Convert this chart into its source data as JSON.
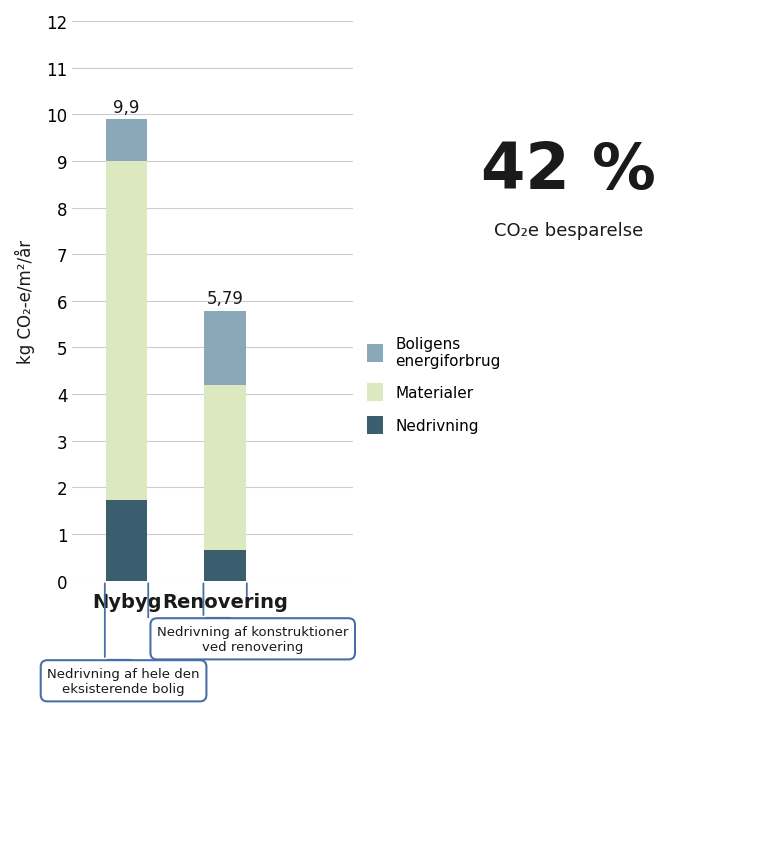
{
  "categories": [
    "Nybyg",
    "Renovering"
  ],
  "nedrivning": [
    1.72,
    0.65
  ],
  "materialer": [
    7.28,
    3.55
  ],
  "energi": [
    0.9,
    1.59
  ],
  "totals": [
    9.9,
    5.79
  ],
  "color_nedrivning": "#3b5e6e",
  "color_materialer": "#dce9c0",
  "color_energi": "#8aa8b8",
  "ylabel": "kg CO₂-e/m²/år",
  "ylim": [
    0,
    12
  ],
  "yticks": [
    0,
    1,
    2,
    3,
    4,
    5,
    6,
    7,
    8,
    9,
    10,
    11,
    12
  ],
  "big_text": "42 %",
  "sub_text": "CO₂e besparelse",
  "legend_labels": [
    "Boligens\nenergiforbrug",
    "Materialer",
    "Nedrivning"
  ],
  "annotation_nybyg": "Nedrivning af hele den\neksisterende bolig",
  "annotation_renovering": "Nedrivning af konstruktioner\nved renovering",
  "bar_width": 0.42,
  "background_color": "#ffffff",
  "grid_color": "#cccccc",
  "annotation_border_color": "#4a6fa5",
  "text_color": "#1a1a1a"
}
